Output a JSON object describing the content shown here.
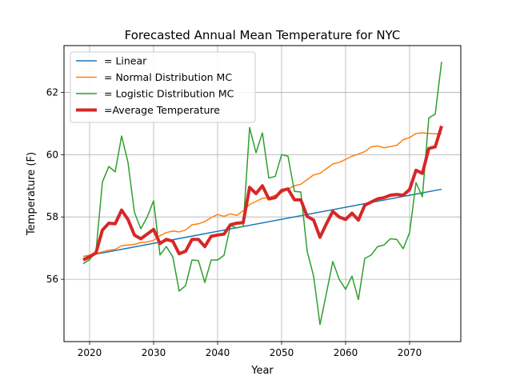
{
  "chart_data": {
    "type": "line",
    "title": "Forecasted Annual Mean Temperature for NYC",
    "xlabel": "Year",
    "ylabel": "Temperature (F)",
    "xlim": [
      2016,
      2078
    ],
    "ylim": [
      54.0,
      63.5
    ],
    "xticks": [
      2020,
      2030,
      2040,
      2050,
      2060,
      2070
    ],
    "yticks": [
      56,
      58,
      60,
      62
    ],
    "grid": true,
    "legend_position": "top-left",
    "series": [
      {
        "name": "= Linear",
        "color": "#1f77b4",
        "linewidth": 1.5,
        "x": [
          2019,
          2075
        ],
        "y": [
          56.73,
          58.89
        ]
      },
      {
        "name": "= Normal Distribution MC",
        "color": "#ff7f0e",
        "linewidth": 1.5,
        "x": [
          2019,
          2020,
          2021,
          2022,
          2023,
          2024,
          2025,
          2026,
          2027,
          2028,
          2029,
          2030,
          2031,
          2032,
          2033,
          2034,
          2035,
          2036,
          2037,
          2038,
          2039,
          2040,
          2041,
          2042,
          2043,
          2044,
          2045,
          2046,
          2047,
          2048,
          2049,
          2050,
          2051,
          2052,
          2053,
          2054,
          2055,
          2056,
          2057,
          2058,
          2059,
          2060,
          2061,
          2062,
          2063,
          2064,
          2065,
          2066,
          2067,
          2068,
          2069,
          2070,
          2071,
          2072,
          2073,
          2074,
          2075
        ],
        "y": [
          56.73,
          56.78,
          56.83,
          56.88,
          56.93,
          56.96,
          57.08,
          57.1,
          57.12,
          57.18,
          57.2,
          57.25,
          57.4,
          57.5,
          57.55,
          57.52,
          57.58,
          57.75,
          57.78,
          57.85,
          57.98,
          58.08,
          58.02,
          58.1,
          58.05,
          58.2,
          58.4,
          58.5,
          58.6,
          58.62,
          58.7,
          58.78,
          58.9,
          59.0,
          59.05,
          59.2,
          59.35,
          59.4,
          59.55,
          59.7,
          59.75,
          59.85,
          59.95,
          60.02,
          60.1,
          60.25,
          60.28,
          60.22,
          60.26,
          60.3,
          60.48,
          60.55,
          60.68,
          60.7,
          60.68,
          60.67,
          60.67
        ]
      },
      {
        "name": "= Logistic Distribution MC",
        "color": "#2ca02c",
        "linewidth": 1.5,
        "x": [
          2019,
          2020,
          2021,
          2022,
          2023,
          2024,
          2025,
          2026,
          2027,
          2028,
          2029,
          2030,
          2031,
          2032,
          2033,
          2034,
          2035,
          2036,
          2037,
          2038,
          2039,
          2040,
          2041,
          2042,
          2043,
          2044,
          2045,
          2046,
          2047,
          2048,
          2049,
          2050,
          2051,
          2052,
          2053,
          2054,
          2055,
          2056,
          2057,
          2058,
          2059,
          2060,
          2061,
          2062,
          2063,
          2064,
          2065,
          2066,
          2067,
          2068,
          2069,
          2070,
          2071,
          2072,
          2073,
          2074,
          2075
        ],
        "y": [
          56.5,
          56.63,
          56.9,
          59.12,
          59.62,
          59.45,
          60.6,
          59.75,
          58.15,
          57.62,
          58.0,
          58.52,
          56.78,
          57.05,
          56.72,
          55.62,
          55.8,
          56.62,
          56.6,
          55.9,
          56.62,
          56.62,
          56.77,
          57.72,
          57.65,
          57.7,
          60.87,
          60.06,
          60.7,
          59.25,
          59.3,
          60.0,
          59.95,
          58.82,
          58.8,
          56.9,
          56.1,
          54.55,
          55.55,
          56.57,
          56.0,
          55.68,
          56.1,
          55.35,
          56.67,
          56.78,
          57.05,
          57.1,
          57.3,
          57.28,
          56.98,
          57.5,
          59.1,
          58.65,
          61.18,
          61.3,
          62.98
        ]
      },
      {
        "name": "=Average Temperature",
        "color": "#d62728",
        "linewidth": 4,
        "x": [
          2019,
          2020,
          2021,
          2022,
          2023,
          2024,
          2025,
          2026,
          2027,
          2028,
          2029,
          2030,
          2031,
          2032,
          2033,
          2034,
          2035,
          2036,
          2037,
          2038,
          2039,
          2040,
          2041,
          2042,
          2043,
          2044,
          2045,
          2046,
          2047,
          2048,
          2049,
          2050,
          2051,
          2052,
          2053,
          2054,
          2055,
          2056,
          2057,
          2058,
          2059,
          2060,
          2061,
          2062,
          2063,
          2064,
          2065,
          2066,
          2067,
          2068,
          2069,
          2070,
          2071,
          2072,
          2073,
          2074,
          2075
        ],
        "y": [
          56.62,
          56.72,
          56.85,
          57.58,
          57.8,
          57.78,
          58.22,
          57.92,
          57.42,
          57.3,
          57.45,
          57.6,
          57.15,
          57.28,
          57.22,
          56.82,
          56.9,
          57.28,
          57.28,
          57.05,
          57.38,
          57.42,
          57.45,
          57.75,
          57.8,
          57.82,
          58.95,
          58.75,
          59.0,
          58.58,
          58.62,
          58.85,
          58.9,
          58.55,
          58.55,
          58.02,
          57.9,
          57.35,
          57.78,
          58.18,
          58.0,
          57.92,
          58.12,
          57.9,
          58.38,
          58.48,
          58.58,
          58.62,
          58.7,
          58.72,
          58.7,
          58.88,
          59.5,
          59.4,
          60.2,
          60.25,
          60.92
        ]
      }
    ]
  }
}
